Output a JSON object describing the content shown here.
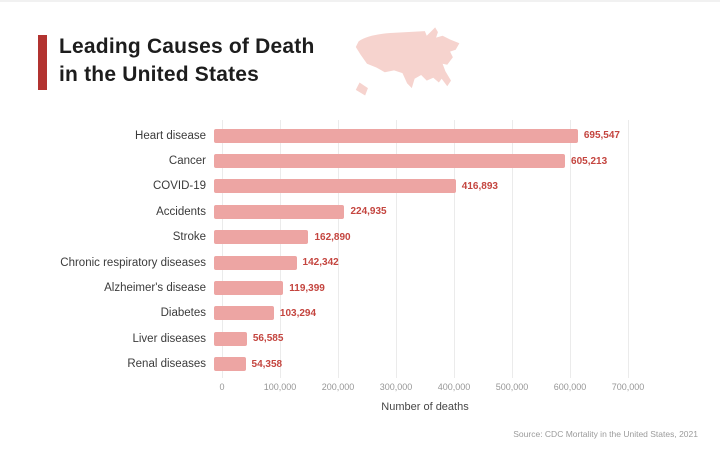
{
  "header": {
    "title_line1": "Leading Causes of Death",
    "title_line2": "in the United States",
    "accent_color": "#b23330"
  },
  "map_icon": {
    "name": "usa-map-icon",
    "fill": "#f6d3ce"
  },
  "chart_data": {
    "type": "bar",
    "orientation": "horizontal",
    "title": "Leading Causes of Death in the United States",
    "categories": [
      "Heart disease",
      "Cancer",
      "COVID-19",
      "Accidents",
      "Stroke",
      "Chronic respiratory diseases",
      "Alzheimer's disease",
      "Diabetes",
      "Liver diseases",
      "Renal diseases"
    ],
    "values": [
      695547,
      605213,
      416893,
      224935,
      162890,
      142342,
      119399,
      103294,
      56585,
      54358
    ],
    "value_labels": [
      "695,547",
      "605,213",
      "416,893",
      "224,935",
      "162,890",
      "142,342",
      "119,399",
      "103,294",
      "56,585",
      "54,358"
    ],
    "xlabel": "Number of deaths",
    "x_ticks": [
      "0",
      "100,000",
      "200,000",
      "300,000",
      "400,000",
      "500,000",
      "600,000",
      "700,000"
    ],
    "xlim": [
      0,
      700000
    ],
    "grid": true,
    "legend": "none",
    "bar_color": "#eda5a3",
    "value_color": "#c4453f",
    "grid_color": "#ebebeb"
  },
  "footer": {
    "source": "Source: CDC Mortality in the United States, 2021"
  }
}
